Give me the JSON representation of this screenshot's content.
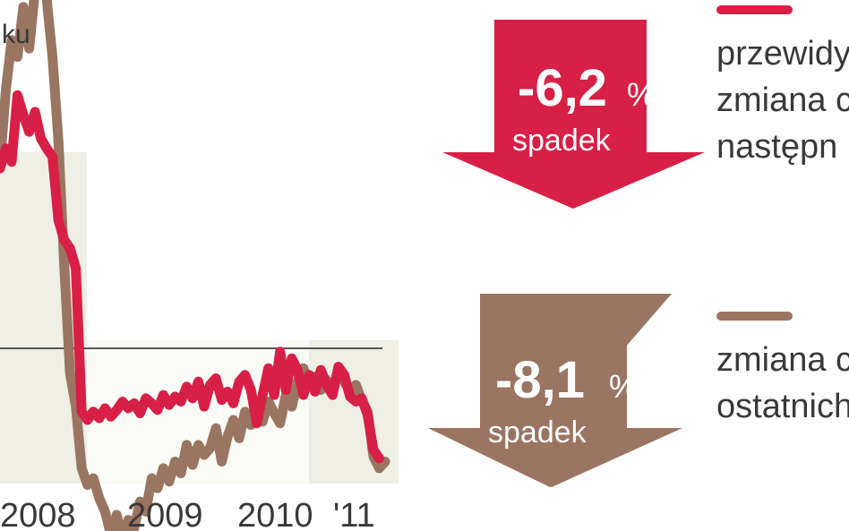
{
  "chart_data": {
    "type": "line",
    "title_fragment": "ku",
    "x_tick_labels": [
      "2008",
      "2009",
      "2010",
      "'11"
    ],
    "series": [
      {
        "color": "#d81f45",
        "values": [
          [
            2007.55,
            0.8
          ],
          [
            2007.6,
            2.0
          ],
          [
            2007.65,
            1.2
          ],
          [
            2007.7,
            5.2
          ],
          [
            2007.75,
            4.0
          ],
          [
            2007.8,
            3.0
          ],
          [
            2007.85,
            4.2
          ],
          [
            2007.9,
            2.6
          ],
          [
            2007.95,
            2.0
          ],
          [
            2008.0,
            1.5
          ],
          [
            2008.05,
            -2.3
          ],
          [
            2008.1,
            -3.5
          ],
          [
            2008.15,
            -4.0
          ],
          [
            2008.2,
            -5.2
          ],
          [
            2008.25,
            -13.8
          ],
          [
            2008.3,
            -14.3
          ],
          [
            2008.35,
            -13.8
          ],
          [
            2008.4,
            -14.2
          ],
          [
            2008.45,
            -13.6
          ],
          [
            2008.5,
            -14.1
          ],
          [
            2008.55,
            -13.7
          ],
          [
            2008.6,
            -13.2
          ],
          [
            2008.65,
            -13.6
          ],
          [
            2008.7,
            -13.3
          ],
          [
            2008.75,
            -13.9
          ],
          [
            2008.8,
            -13.0
          ],
          [
            2008.85,
            -13.3
          ],
          [
            2008.9,
            -13.7
          ],
          [
            2008.95,
            -12.8
          ],
          [
            2009.0,
            -13.4
          ],
          [
            2009.05,
            -12.9
          ],
          [
            2009.1,
            -13.2
          ],
          [
            2009.15,
            -12.3
          ],
          [
            2009.2,
            -13.0
          ],
          [
            2009.25,
            -12.0
          ],
          [
            2009.3,
            -13.5
          ],
          [
            2009.35,
            -12.2
          ],
          [
            2009.4,
            -11.8
          ],
          [
            2009.45,
            -13.1
          ],
          [
            2009.5,
            -12.6
          ],
          [
            2009.55,
            -13.3
          ],
          [
            2009.6,
            -12.0
          ],
          [
            2009.65,
            -11.6
          ],
          [
            2009.7,
            -12.5
          ],
          [
            2009.75,
            -14.5
          ],
          [
            2009.8,
            -12.8
          ],
          [
            2009.85,
            -11.2
          ],
          [
            2009.9,
            -12.8
          ],
          [
            2009.95,
            -10.2
          ],
          [
            2010.0,
            -12.5
          ],
          [
            2010.05,
            -10.6
          ],
          [
            2010.1,
            -11.3
          ],
          [
            2010.15,
            -12.8
          ],
          [
            2010.2,
            -11.6
          ],
          [
            2010.25,
            -12.6
          ],
          [
            2010.3,
            -11.3
          ],
          [
            2010.35,
            -12.2
          ],
          [
            2010.4,
            -12.8
          ],
          [
            2010.45,
            -11.1
          ],
          [
            2010.5,
            -11.6
          ],
          [
            2010.55,
            -12.9
          ],
          [
            2010.6,
            -13.2
          ],
          [
            2010.65,
            -13.0
          ],
          [
            2010.7,
            -14.0
          ],
          [
            2010.75,
            -16.1
          ],
          [
            2010.8,
            -16.6
          ]
        ]
      },
      {
        "color": "#9a7561",
        "values": [
          [
            2007.55,
            1.0
          ],
          [
            2007.6,
            5.5
          ],
          [
            2007.65,
            8.5
          ],
          [
            2007.7,
            7.5
          ],
          [
            2007.75,
            10.5
          ],
          [
            2007.8,
            8.0
          ],
          [
            2007.85,
            11.5
          ],
          [
            2007.9,
            13.2
          ],
          [
            2007.95,
            11.0
          ],
          [
            2008.0,
            7.5
          ],
          [
            2008.05,
            2.5
          ],
          [
            2008.1,
            -5.0
          ],
          [
            2008.15,
            -11.5
          ],
          [
            2008.2,
            -13.5
          ],
          [
            2008.25,
            -17.2
          ],
          [
            2008.3,
            -18.2
          ],
          [
            2008.35,
            -17.8
          ],
          [
            2008.4,
            -19.0
          ],
          [
            2008.45,
            -19.8
          ],
          [
            2008.5,
            -21.2
          ],
          [
            2008.55,
            -20.0
          ],
          [
            2008.6,
            -21.5
          ],
          [
            2008.65,
            -20.3
          ],
          [
            2008.7,
            -20.8
          ],
          [
            2008.75,
            -19.2
          ],
          [
            2008.8,
            -19.8
          ],
          [
            2008.85,
            -17.8
          ],
          [
            2008.9,
            -18.4
          ],
          [
            2008.95,
            -17.2
          ],
          [
            2009.0,
            -18.0
          ],
          [
            2009.05,
            -16.8
          ],
          [
            2009.1,
            -17.5
          ],
          [
            2009.15,
            -15.8
          ],
          [
            2009.2,
            -17.0
          ],
          [
            2009.25,
            -15.8
          ],
          [
            2009.3,
            -16.4
          ],
          [
            2009.35,
            -16.0
          ],
          [
            2009.4,
            -14.8
          ],
          [
            2009.45,
            -16.8
          ],
          [
            2009.5,
            -15.3
          ],
          [
            2009.55,
            -14.3
          ],
          [
            2009.6,
            -15.4
          ],
          [
            2009.65,
            -13.8
          ],
          [
            2009.7,
            -14.6
          ],
          [
            2009.75,
            -13.5
          ],
          [
            2009.8,
            -14.4
          ],
          [
            2009.85,
            -13.2
          ],
          [
            2009.9,
            -13.9
          ],
          [
            2009.95,
            -14.5
          ],
          [
            2010.0,
            -12.8
          ],
          [
            2010.05,
            -13.5
          ],
          [
            2010.1,
            -12.0
          ],
          [
            2010.15,
            -11.2
          ],
          [
            2010.2,
            -12.2
          ],
          [
            2010.25,
            -11.7
          ],
          [
            2010.3,
            -12.5
          ],
          [
            2010.35,
            -11.9
          ],
          [
            2010.4,
            -12.3
          ],
          [
            2010.45,
            -11.5
          ],
          [
            2010.5,
            -12.0
          ],
          [
            2010.55,
            -12.6
          ],
          [
            2010.6,
            -12.2
          ],
          [
            2010.65,
            -13.1
          ],
          [
            2010.7,
            -13.8
          ],
          [
            2010.75,
            -16.5
          ],
          [
            2010.8,
            -17.2
          ],
          [
            2010.85,
            -16.8
          ]
        ]
      }
    ],
    "baseline_y": -10
  },
  "callouts": [
    {
      "value": "-6,2",
      "unit": "%",
      "label": "spadek",
      "arrow_color": "#d81f45",
      "legend_color": "#d81f45",
      "legend_text": [
        "przewidy",
        "zmiana c",
        "następn"
      ]
    },
    {
      "value": "-8,1",
      "unit": "%",
      "label": "spadek",
      "arrow_color": "#9a7561",
      "legend_color": "#9a7561",
      "legend_text": [
        "zmiana c",
        "ostatnich"
      ]
    }
  ]
}
